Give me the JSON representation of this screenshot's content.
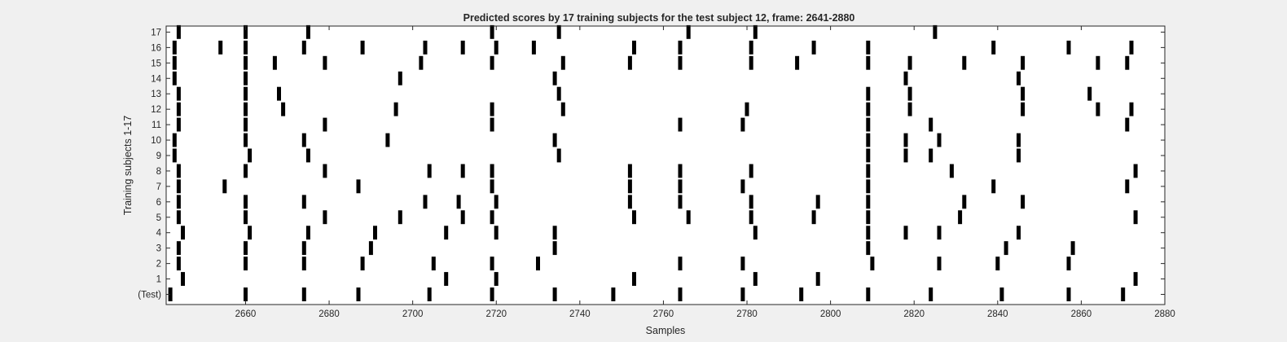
{
  "chart_data": {
    "type": "raster",
    "title": "Predicted scores by 17 training subjects for the test subject 12, frame: 2641-2880",
    "xlabel": "Samples",
    "ylabel": "Training subjects 1-17",
    "xlim": [
      2641,
      2880
    ],
    "xticks": [
      2660,
      2680,
      2700,
      2720,
      2740,
      2760,
      2780,
      2800,
      2820,
      2840,
      2860,
      2880
    ],
    "yticks": [
      "(Test)",
      "1",
      "2",
      "3",
      "4",
      "5",
      "6",
      "7",
      "8",
      "9",
      "10",
      "11",
      "12",
      "13",
      "14",
      "15",
      "16",
      "17"
    ],
    "grid": false,
    "legend": "none",
    "mark_color": "#000000",
    "rows": [
      {
        "label": "(Test)",
        "events": [
          2642,
          2660,
          2674,
          2687,
          2704,
          2719,
          2734,
          2748,
          2764,
          2779,
          2793,
          2809,
          2824,
          2841,
          2857,
          2870
        ]
      },
      {
        "label": "1",
        "events": [
          2645,
          2708,
          2720,
          2753,
          2782,
          2797,
          2873
        ]
      },
      {
        "label": "2",
        "events": [
          2644,
          2660,
          2674,
          2688,
          2705,
          2719,
          2730,
          2764,
          2779,
          2810,
          2826,
          2840,
          2857
        ]
      },
      {
        "label": "3",
        "events": [
          2644,
          2660,
          2674,
          2690,
          2734,
          2809,
          2842,
          2858
        ]
      },
      {
        "label": "4",
        "events": [
          2645,
          2661,
          2675,
          2691,
          2708,
          2720,
          2734,
          2782,
          2809,
          2818,
          2826,
          2845
        ]
      },
      {
        "label": "5",
        "events": [
          2644,
          2660,
          2679,
          2697,
          2712,
          2719,
          2753,
          2766,
          2781,
          2796,
          2809,
          2831,
          2873
        ]
      },
      {
        "label": "6",
        "events": [
          2644,
          2660,
          2674,
          2703,
          2711,
          2720,
          2752,
          2764,
          2781,
          2797,
          2809,
          2832,
          2846
        ]
      },
      {
        "label": "7",
        "events": [
          2644,
          2655,
          2687,
          2719,
          2752,
          2764,
          2779,
          2809,
          2839,
          2871
        ]
      },
      {
        "label": "8",
        "events": [
          2644,
          2660,
          2679,
          2704,
          2712,
          2719,
          2752,
          2764,
          2781,
          2809,
          2829,
          2873
        ]
      },
      {
        "label": "9",
        "events": [
          2643,
          2661,
          2675,
          2735,
          2809,
          2818,
          2824,
          2845
        ]
      },
      {
        "label": "10",
        "events": [
          2643,
          2660,
          2674,
          2694,
          2734,
          2809,
          2818,
          2826,
          2845
        ]
      },
      {
        "label": "11",
        "events": [
          2644,
          2660,
          2679,
          2719,
          2764,
          2779,
          2809,
          2824,
          2871
        ]
      },
      {
        "label": "12",
        "events": [
          2644,
          2660,
          2669,
          2696,
          2719,
          2736,
          2780,
          2809,
          2819,
          2846,
          2864,
          2872
        ]
      },
      {
        "label": "13",
        "events": [
          2644,
          2660,
          2668,
          2735,
          2809,
          2819,
          2846,
          2862
        ]
      },
      {
        "label": "14",
        "events": [
          2643,
          2660,
          2697,
          2734,
          2818,
          2845
        ]
      },
      {
        "label": "15",
        "events": [
          2643,
          2660,
          2667,
          2679,
          2702,
          2719,
          2736,
          2752,
          2764,
          2781,
          2792,
          2809,
          2819,
          2832,
          2846,
          2864,
          2871
        ]
      },
      {
        "label": "16",
        "events": [
          2643,
          2654,
          2660,
          2674,
          2688,
          2703,
          2712,
          2720,
          2729,
          2753,
          2764,
          2781,
          2796,
          2809,
          2839,
          2857,
          2872
        ]
      },
      {
        "label": "17",
        "events": [
          2644,
          2660,
          2675,
          2719,
          2735,
          2766,
          2782,
          2825
        ]
      }
    ]
  }
}
